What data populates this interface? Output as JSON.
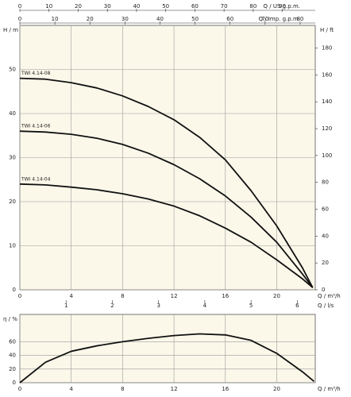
{
  "chart_data": [
    {
      "type": "line",
      "xlabel": "Q / m³/h",
      "xlim": [
        0,
        23
      ],
      "xticks": [
        0,
        4,
        8,
        12,
        16,
        20
      ],
      "ylabel": "H / m",
      "ylim": [
        0,
        60
      ],
      "yticks": [
        0,
        10,
        20,
        30,
        40,
        50
      ],
      "y2label": "H / ft",
      "y2lim": [
        0,
        196.85
      ],
      "y2ticks": [
        0,
        20,
        40,
        60,
        80,
        100,
        120,
        140,
        160,
        180
      ],
      "extra_x_axes": [
        {
          "label": "Q / l/s",
          "lim": [
            0,
            6.389
          ],
          "ticks": [
            1,
            2,
            3,
            4,
            5,
            6
          ],
          "position": "bottom"
        },
        {
          "label": "Q / US g.p.m.",
          "lim": [
            0,
            101.27
          ],
          "ticks": [
            0,
            10,
            20,
            30,
            40,
            50,
            60,
            70,
            80,
            90
          ],
          "position": "top"
        },
        {
          "label": "Q / Imp. g.p.m.",
          "lim": [
            0,
            84.32
          ],
          "ticks": [
            0,
            10,
            20,
            30,
            40,
            50,
            60,
            70,
            80
          ],
          "position": "top"
        }
      ],
      "grid": true,
      "x": [
        0,
        2,
        4,
        6,
        8,
        10,
        12,
        14,
        16,
        18,
        20,
        22,
        22.8
      ],
      "series": [
        {
          "name": "TWI 4.14-08",
          "color": "#111111",
          "values": [
            48,
            47.8,
            47,
            45.8,
            44,
            41.6,
            38.6,
            34.6,
            29.5,
            22.5,
            14.5,
            5,
            0.5
          ]
        },
        {
          "name": "TWI 4.14-06",
          "color": "#111111",
          "values": [
            36,
            35.8,
            35.3,
            34.4,
            33,
            31,
            28.4,
            25.2,
            21.3,
            16.5,
            10.8,
            3.6,
            0.5
          ]
        },
        {
          "name": "TWI 4.14-04",
          "color": "#111111",
          "values": [
            24,
            23.8,
            23.3,
            22.7,
            21.8,
            20.6,
            19,
            16.8,
            14,
            10.8,
            6.8,
            2.5,
            0.5
          ]
        }
      ]
    },
    {
      "type": "line",
      "xlabel": "Q / m³/h",
      "xlim": [
        0,
        23
      ],
      "xticks": [
        0,
        4,
        8,
        12,
        16,
        20
      ],
      "ylabel": "η / %",
      "ylim": [
        0,
        100
      ],
      "yticks": [
        0,
        20,
        40,
        60
      ],
      "grid": true,
      "x": [
        0,
        2,
        4,
        6,
        8,
        10,
        12,
        14,
        16,
        18,
        20,
        22,
        22.9
      ],
      "series": [
        {
          "color": "#111111",
          "values": [
            0,
            30,
            46,
            54,
            60,
            65,
            69,
            71.5,
            70,
            62,
            43,
            16,
            2
          ]
        }
      ]
    }
  ]
}
